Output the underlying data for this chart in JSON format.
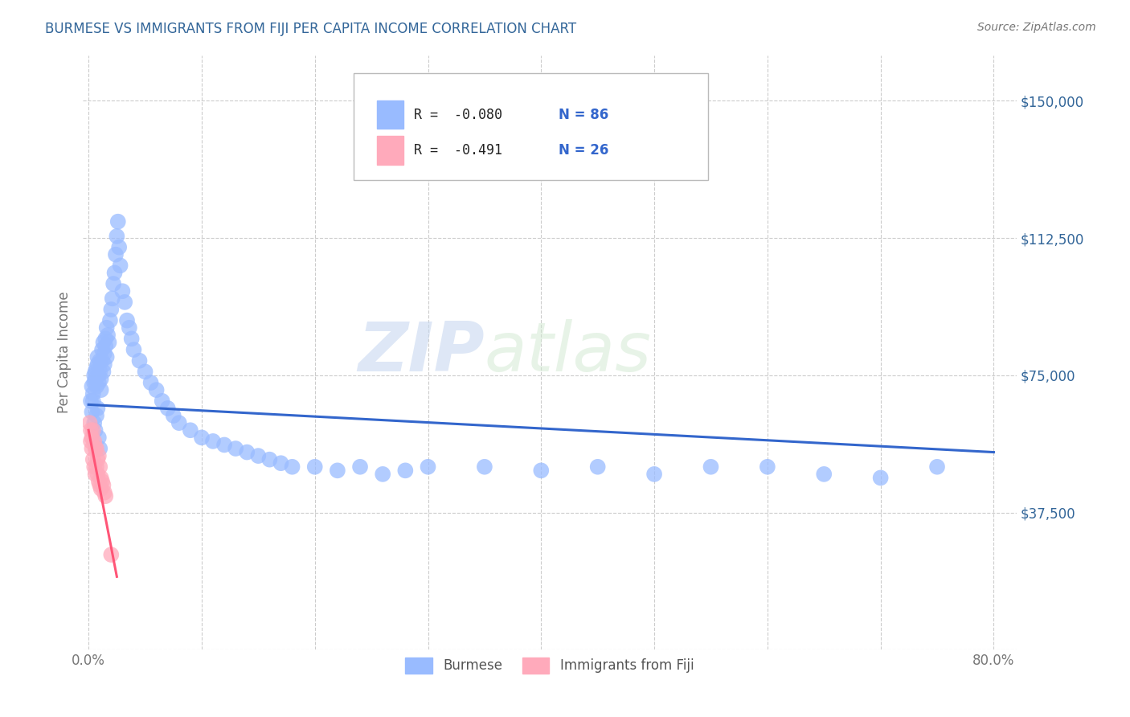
{
  "title": "BURMESE VS IMMIGRANTS FROM FIJI PER CAPITA INCOME CORRELATION CHART",
  "source": "Source: ZipAtlas.com",
  "ylabel": "Per Capita Income",
  "xlim": [
    -0.005,
    0.82
  ],
  "ylim": [
    0,
    162500
  ],
  "xticks": [
    0.0,
    0.1,
    0.2,
    0.3,
    0.4,
    0.5,
    0.6,
    0.7,
    0.8
  ],
  "xticklabels": [
    "0.0%",
    "",
    "",
    "",
    "",
    "",
    "",
    "",
    "80.0%"
  ],
  "yticks": [
    0,
    37500,
    75000,
    112500,
    150000
  ],
  "yticklabels": [
    "",
    "$37,500",
    "$75,000",
    "$112,500",
    "$150,000"
  ],
  "blue_color": "#99bbff",
  "pink_color": "#ffaabb",
  "blue_line_color": "#3366cc",
  "pink_line_color": "#ff5577",
  "r_blue": -0.08,
  "n_blue": 86,
  "r_pink": -0.491,
  "n_pink": 26,
  "watermark_zip": "ZIP",
  "watermark_atlas": "atlas",
  "background_color": "#ffffff",
  "grid_color": "#cccccc",
  "title_color": "#336699",
  "axis_label_color": "#336699",
  "legend_label_blue": "Burmese",
  "legend_label_pink": "Immigrants from Fiji",
  "blue_scatter_x": [
    0.002,
    0.003,
    0.004,
    0.005,
    0.005,
    0.006,
    0.006,
    0.007,
    0.007,
    0.008,
    0.008,
    0.009,
    0.009,
    0.01,
    0.01,
    0.011,
    0.011,
    0.012,
    0.012,
    0.013,
    0.013,
    0.014,
    0.014,
    0.015,
    0.015,
    0.016,
    0.016,
    0.017,
    0.018,
    0.019,
    0.02,
    0.021,
    0.022,
    0.023,
    0.024,
    0.025,
    0.026,
    0.027,
    0.028,
    0.03,
    0.032,
    0.034,
    0.036,
    0.038,
    0.04,
    0.045,
    0.05,
    0.055,
    0.06,
    0.065,
    0.07,
    0.075,
    0.08,
    0.09,
    0.1,
    0.11,
    0.12,
    0.13,
    0.14,
    0.15,
    0.16,
    0.17,
    0.18,
    0.2,
    0.22,
    0.24,
    0.26,
    0.28,
    0.3,
    0.35,
    0.4,
    0.45,
    0.5,
    0.55,
    0.6,
    0.65,
    0.7,
    0.75,
    0.003,
    0.004,
    0.005,
    0.006,
    0.007,
    0.008,
    0.009,
    0.01
  ],
  "blue_scatter_y": [
    68000,
    72000,
    70000,
    75000,
    73000,
    76000,
    74000,
    77000,
    72000,
    80000,
    78000,
    75000,
    73000,
    79000,
    76000,
    74000,
    71000,
    82000,
    79000,
    76000,
    84000,
    81000,
    78000,
    85000,
    83000,
    80000,
    88000,
    86000,
    84000,
    90000,
    93000,
    96000,
    100000,
    103000,
    108000,
    113000,
    117000,
    110000,
    105000,
    98000,
    95000,
    90000,
    88000,
    85000,
    82000,
    79000,
    76000,
    73000,
    71000,
    68000,
    66000,
    64000,
    62000,
    60000,
    58000,
    57000,
    56000,
    55000,
    54000,
    53000,
    52000,
    51000,
    50000,
    50000,
    49000,
    50000,
    48000,
    49000,
    50000,
    50000,
    49000,
    50000,
    48000,
    50000,
    50000,
    48000,
    47000,
    50000,
    65000,
    68000,
    62000,
    60000,
    64000,
    66000,
    58000,
    55000
  ],
  "pink_scatter_x": [
    0.001,
    0.002,
    0.002,
    0.003,
    0.003,
    0.004,
    0.004,
    0.005,
    0.005,
    0.006,
    0.006,
    0.007,
    0.007,
    0.008,
    0.008,
    0.009,
    0.009,
    0.01,
    0.01,
    0.011,
    0.011,
    0.012,
    0.013,
    0.014,
    0.015,
    0.02
  ],
  "pink_scatter_y": [
    62000,
    60000,
    57000,
    58000,
    55000,
    60000,
    52000,
    57000,
    50000,
    55000,
    48000,
    55000,
    50000,
    52000,
    48000,
    53000,
    46000,
    50000,
    45000,
    47000,
    44000,
    46000,
    45000,
    43000,
    42000,
    26000
  ]
}
